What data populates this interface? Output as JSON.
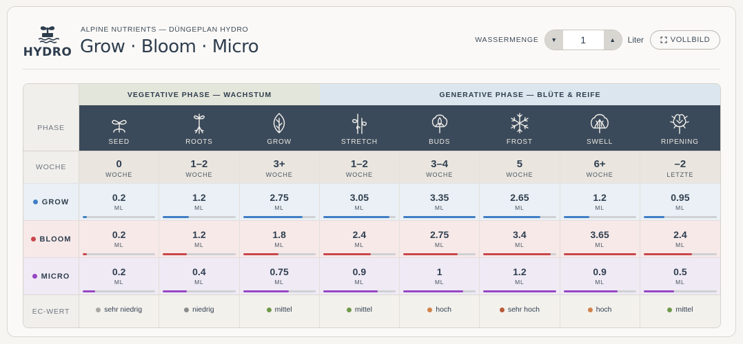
{
  "header": {
    "logo_text": "HYDRO",
    "subtitle": "ALPINE NUTRIENTS — DÜNGEPLAN HYDRO",
    "title": "Grow · Bloom · Micro",
    "water_label": "WASSERMENGE",
    "water_value": "1",
    "water_unit": "Liter",
    "decrement_symbol": "▼",
    "increment_symbol": "▲",
    "fullscreen_label": "VOLLBILD",
    "fullscreen_icon": "expand-icon"
  },
  "table": {
    "vegetative_label": "VEGETATIVE PHASE — WACHSTUM",
    "generative_label": "GENERATIVE PHASE — BLÜTE & REIFE",
    "row_labels": {
      "phase": "PHASE",
      "week": "WOCHE",
      "grow": "GROW",
      "bloom": "BLOOM",
      "micro": "MICRO",
      "ec": "EC-WERT"
    },
    "colors": {
      "grow": "#3f7fc4",
      "bloom": "#c9464a",
      "micro": "#9646c2",
      "header_dark": "#3b4a5a"
    },
    "ml_unit": "ML",
    "phases": [
      {
        "name": "SEED",
        "icon": "seedling-icon",
        "week": "0",
        "week_unit": "WOCHE",
        "grow": "0.2",
        "bloom": "0.2",
        "micro": "0.2",
        "grow_level": 0.06,
        "bloom_level": 0.06,
        "micro_level": 0.17,
        "ec": "sehr niedrig",
        "ec_color": "#a9a8a5"
      },
      {
        "name": "ROOTS",
        "icon": "roots-icon",
        "week": "1–2",
        "week_unit": "WOCHE",
        "grow": "1.2",
        "bloom": "1.2",
        "micro": "0.4",
        "grow_level": 0.36,
        "bloom_level": 0.33,
        "micro_level": 0.33,
        "ec": "niedrig",
        "ec_color": "#8a8c8c"
      },
      {
        "name": "GROW",
        "icon": "leaf-icon",
        "week": "3+",
        "week_unit": "WOCHE",
        "grow": "2.75",
        "bloom": "1.8",
        "micro": "0.75",
        "grow_level": 0.82,
        "bloom_level": 0.49,
        "micro_level": 0.63,
        "ec": "mittel",
        "ec_color": "#6f9a4b"
      },
      {
        "name": "STRETCH",
        "icon": "stretch-icon",
        "week": "1–2",
        "week_unit": "WOCHE",
        "grow": "3.05",
        "bloom": "2.4",
        "micro": "0.9",
        "grow_level": 0.91,
        "bloom_level": 0.66,
        "micro_level": 0.75,
        "ec": "mittel",
        "ec_color": "#6f9a4b"
      },
      {
        "name": "BUDS",
        "icon": "bud-icon",
        "week": "3–4",
        "week_unit": "WOCHE",
        "grow": "3.35",
        "bloom": "2.75",
        "micro": "1",
        "grow_level": 1.0,
        "bloom_level": 0.75,
        "micro_level": 0.83,
        "ec": "hoch",
        "ec_color": "#d0834b"
      },
      {
        "name": "FROST",
        "icon": "snowflake-icon",
        "week": "5",
        "week_unit": "WOCHE",
        "grow": "2.65",
        "bloom": "3.4",
        "micro": "1.2",
        "grow_level": 0.79,
        "bloom_level": 0.93,
        "micro_level": 1.0,
        "ec": "sehr hoch",
        "ec_color": "#b85a3a"
      },
      {
        "name": "SWELL",
        "icon": "swell-icon",
        "week": "6+",
        "week_unit": "WOCHE",
        "grow": "1.2",
        "bloom": "3.65",
        "micro": "0.9",
        "grow_level": 0.36,
        "bloom_level": 1.0,
        "micro_level": 0.75,
        "ec": "hoch",
        "ec_color": "#d0834b"
      },
      {
        "name": "RIPENING",
        "icon": "ripening-icon",
        "week": "–2",
        "week_unit": "LETZTE",
        "grow": "0.95",
        "bloom": "2.4",
        "micro": "0.5",
        "grow_level": 0.28,
        "bloom_level": 0.66,
        "micro_level": 0.42,
        "ec": "mittel",
        "ec_color": "#6f9a4b"
      }
    ]
  }
}
